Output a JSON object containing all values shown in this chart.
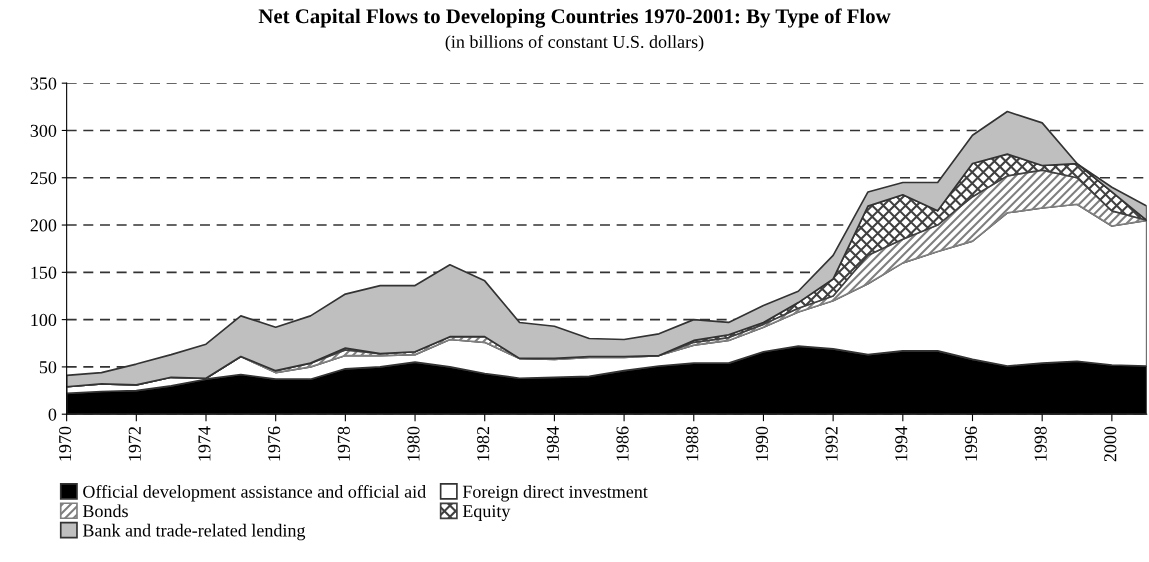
{
  "chart_data": {
    "type": "area",
    "stacked": true,
    "title": "Net Capital Flows to Developing Countries 1970-2001: By Type of Flow",
    "subtitle": "(in billions of constant U.S. dollars)",
    "x": [
      1970,
      1971,
      1972,
      1973,
      1974,
      1975,
      1976,
      1977,
      1978,
      1979,
      1980,
      1981,
      1982,
      1983,
      1984,
      1985,
      1986,
      1987,
      1988,
      1989,
      1990,
      1991,
      1992,
      1993,
      1994,
      1995,
      1996,
      1997,
      1998,
      1999,
      2000,
      2001
    ],
    "series": [
      {
        "name": "Official development assistance and official aid",
        "color": "#000000",
        "values": [
          22,
          24,
          25,
          30,
          37,
          42,
          37,
          37,
          48,
          50,
          55,
          50,
          43,
          38,
          39,
          40,
          46,
          51,
          54,
          54,
          66,
          72,
          69,
          63,
          67,
          67,
          58,
          51,
          54,
          56,
          52,
          51
        ]
      },
      {
        "name": "Foreign direct investment",
        "color": "#ffffff",
        "values": [
          7,
          8,
          6,
          9,
          1,
          19,
          7,
          13,
          14,
          12,
          8,
          29,
          33,
          21,
          19,
          20,
          14,
          11,
          19,
          24,
          26,
          36,
          51,
          75,
          93,
          105,
          125,
          162,
          164,
          166,
          147,
          154
        ]
      },
      {
        "name": "Bonds",
        "color": "#7f7f7f",
        "values": [
          0,
          0,
          0,
          0,
          0,
          0,
          2,
          4,
          6,
          2,
          3,
          3,
          6,
          0,
          1,
          1,
          1,
          0,
          3,
          3,
          3,
          4,
          5,
          30,
          25,
          28,
          47,
          39,
          40,
          28,
          16,
          0
        ]
      },
      {
        "name": "Equity",
        "color": "#404040",
        "values": [
          0,
          0,
          0,
          0,
          0,
          0,
          0,
          0,
          2,
          0,
          0,
          0,
          0,
          0,
          0,
          0,
          0,
          0,
          2,
          3,
          2,
          6,
          18,
          52,
          47,
          15,
          35,
          23,
          5,
          15,
          20,
          0
        ]
      },
      {
        "name": "Bank and trade-related lending",
        "color": "#bfbfbf",
        "values": [
          12,
          12,
          22,
          24,
          36,
          43,
          46,
          50,
          57,
          72,
          70,
          76,
          59,
          38,
          34,
          19,
          18,
          23,
          22,
          13,
          18,
          12,
          25,
          15,
          13,
          30,
          30,
          45,
          45,
          0,
          5,
          15
        ]
      }
    ],
    "xlim": [
      1970,
      2001
    ],
    "xticks": [
      1970,
      1972,
      1974,
      1976,
      1978,
      1980,
      1982,
      1984,
      1986,
      1988,
      1990,
      1992,
      1994,
      1996,
      1998,
      2000
    ],
    "ylim": [
      0,
      350
    ],
    "yticks": [
      0,
      50,
      100,
      150,
      200,
      250,
      300,
      350
    ],
    "grid": "y",
    "line_style": "dashed",
    "legend": "bottom"
  }
}
